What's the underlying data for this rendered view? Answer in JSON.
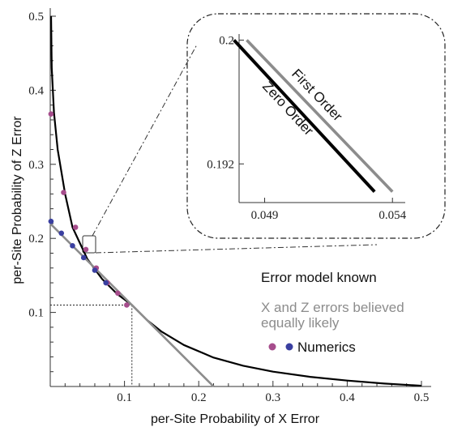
{
  "chart_data": {
    "type": "line",
    "xlabel": "per-Site Probability of X Error",
    "ylabel": "per-Site Probability of Z Error",
    "xlim": [
      0,
      0.5
    ],
    "ylim": [
      0,
      0.5
    ],
    "x_ticks": [
      "0.1",
      "0.2",
      "0.3",
      "0.4",
      "0.5"
    ],
    "y_ticks": [
      "0.1",
      "0.2",
      "0.3",
      "0.4",
      "0.5"
    ],
    "threshold_marker": {
      "x": 0.11,
      "y": 0.11
    },
    "series": [
      {
        "name": "Error model known",
        "color": "#000000",
        "kind": "line",
        "x": [
          0.002,
          0.005,
          0.01,
          0.02,
          0.03,
          0.05,
          0.07,
          0.09,
          0.11,
          0.13,
          0.15,
          0.18,
          0.22,
          0.26,
          0.3,
          0.35,
          0.4,
          0.45,
          0.5
        ],
        "y": [
          0.43,
          0.37,
          0.32,
          0.26,
          0.215,
          0.172,
          0.145,
          0.125,
          0.11,
          0.09,
          0.074,
          0.056,
          0.039,
          0.028,
          0.02,
          0.013,
          0.008,
          0.004,
          0.001
        ]
      },
      {
        "name": "X and Z errors believed equally likely",
        "color": "#8c8c8c",
        "kind": "line",
        "x": [
          0,
          0.22
        ],
        "y": [
          0.22,
          0
        ]
      },
      {
        "name": "Numerics",
        "kind": "scatter",
        "color": "#a64d8c",
        "x": [
          0.001,
          0.018,
          0.034,
          0.048,
          0.062,
          0.077,
          0.091,
          0.103
        ],
        "y": [
          0.368,
          0.262,
          0.215,
          0.185,
          0.16,
          0.14,
          0.126,
          0.11
        ]
      },
      {
        "name": "Numerics",
        "kind": "scatter",
        "color": "#3a3fa0",
        "x": [
          0.001,
          0.015,
          0.03,
          0.045,
          0.06,
          0.075
        ],
        "y": [
          0.223,
          0.207,
          0.19,
          0.174,
          0.157,
          0.14
        ]
      }
    ],
    "inset": {
      "xlim": [
        0.048,
        0.0545
      ],
      "ylim": [
        0.1895,
        0.2005
      ],
      "x_ticks": [
        "0.049",
        "0.054"
      ],
      "y_ticks": [
        "0.192",
        "0.2"
      ],
      "lines": [
        {
          "label": "Zero Order",
          "color": "#000000",
          "x": [
            0.0478,
            0.0533
          ],
          "y": [
            0.2,
            0.1902
          ]
        },
        {
          "label": "First Order",
          "color": "#8c8c8c",
          "x": [
            0.0483,
            0.054
          ],
          "y": [
            0.2,
            0.1902
          ]
        }
      ]
    },
    "legend": {
      "known": "Error model known",
      "equal_line1": "X and Z errors believed",
      "equal_line2": "equally likely",
      "numerics": "Numerics",
      "known_color": "#111111",
      "equal_color": "#8c8c8c",
      "placement": "right-middle"
    }
  }
}
